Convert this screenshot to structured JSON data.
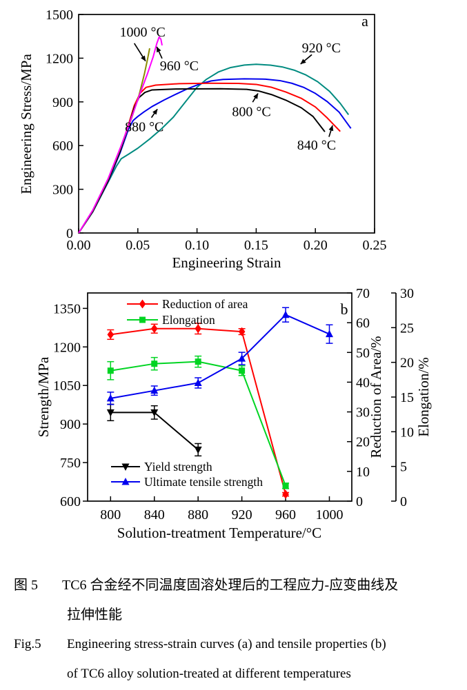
{
  "caption": {
    "zh_label": "图 5",
    "zh_line1": "TC6 合金经不同温度固溶处理后的工程应力-应变曲线及",
    "zh_line2": "拉伸性能",
    "en_label": "Fig.5",
    "en_line1": "Engineering stress-strain curves (a) and tensile properties (b)",
    "en_line2": "of TC6 alloy solution-treated at different temperatures"
  },
  "chart_data": [
    {
      "id": "a",
      "type": "line",
      "panel_label": "a",
      "xlabel": "Engineering Strain",
      "ylabel": "Engineering Stress/MPa",
      "xlim": [
        0,
        0.25
      ],
      "ylim": [
        0,
        1500
      ],
      "xticks": [
        0,
        0.05,
        0.1,
        0.15,
        0.2,
        0.25
      ],
      "xtick_labels": [
        "0.00",
        "0.05",
        "0.10",
        "0.15",
        "0.20",
        "0.25"
      ],
      "yticks": [
        0,
        300,
        600,
        900,
        1200,
        1500
      ],
      "ytick_labels": [
        "0",
        "300",
        "600",
        "900",
        "1200",
        "1500"
      ],
      "grid": false,
      "series": [
        {
          "name": "920 °C",
          "color": "#008b80",
          "points": [
            [
              0,
              0
            ],
            [
              0.012,
              145
            ],
            [
              0.025,
              350
            ],
            [
              0.032,
              460
            ],
            [
              0.036,
              510
            ],
            [
              0.042,
              540
            ],
            [
              0.05,
              582
            ],
            [
              0.06,
              645
            ],
            [
              0.07,
              715
            ],
            [
              0.08,
              795
            ],
            [
              0.09,
              898
            ],
            [
              0.1,
              1000
            ],
            [
              0.108,
              1055
            ],
            [
              0.118,
              1105
            ],
            [
              0.128,
              1135
            ],
            [
              0.14,
              1153
            ],
            [
              0.15,
              1158
            ],
            [
              0.162,
              1152
            ],
            [
              0.172,
              1140
            ],
            [
              0.182,
              1118
            ],
            [
              0.192,
              1085
            ],
            [
              0.202,
              1038
            ],
            [
              0.212,
              972
            ],
            [
              0.221,
              890
            ],
            [
              0.228,
              812
            ]
          ]
        },
        {
          "name": "880 °C",
          "color": "#0000ee",
          "points": [
            [
              0,
              0
            ],
            [
              0.012,
              148
            ],
            [
              0.025,
              355
            ],
            [
              0.035,
              550
            ],
            [
              0.042,
              710
            ],
            [
              0.046,
              772
            ],
            [
              0.05,
              800
            ],
            [
              0.055,
              830
            ],
            [
              0.062,
              868
            ],
            [
              0.072,
              912
            ],
            [
              0.082,
              952
            ],
            [
              0.092,
              990
            ],
            [
              0.102,
              1022
            ],
            [
              0.112,
              1044
            ],
            [
              0.122,
              1054
            ],
            [
              0.14,
              1058
            ],
            [
              0.158,
              1056
            ],
            [
              0.17,
              1046
            ],
            [
              0.18,
              1028
            ],
            [
              0.19,
              1000
            ],
            [
              0.2,
              958
            ],
            [
              0.21,
              902
            ],
            [
              0.22,
              830
            ],
            [
              0.23,
              718
            ]
          ]
        },
        {
          "name": "840 °C",
          "color": "#ff0000",
          "points": [
            [
              0,
              0
            ],
            [
              0.012,
              150
            ],
            [
              0.025,
              360
            ],
            [
              0.035,
              565
            ],
            [
              0.042,
              740
            ],
            [
              0.047,
              875
            ],
            [
              0.052,
              960
            ],
            [
              0.057,
              1000
            ],
            [
              0.065,
              1015
            ],
            [
              0.085,
              1025
            ],
            [
              0.11,
              1028
            ],
            [
              0.135,
              1027
            ],
            [
              0.15,
              1020
            ],
            [
              0.163,
              1000
            ],
            [
              0.175,
              968
            ],
            [
              0.188,
              925
            ],
            [
              0.2,
              865
            ],
            [
              0.21,
              790
            ],
            [
              0.221,
              697
            ]
          ]
        },
        {
          "name": "800 °C",
          "color": "#000000",
          "points": [
            [
              0,
              0
            ],
            [
              0.012,
              150
            ],
            [
              0.025,
              360
            ],
            [
              0.035,
              560
            ],
            [
              0.042,
              730
            ],
            [
              0.047,
              860
            ],
            [
              0.051,
              930
            ],
            [
              0.056,
              965
            ],
            [
              0.062,
              982
            ],
            [
              0.08,
              988
            ],
            [
              0.12,
              990
            ],
            [
              0.142,
              986
            ],
            [
              0.152,
              975
            ],
            [
              0.163,
              950
            ],
            [
              0.175,
              912
            ],
            [
              0.188,
              860
            ],
            [
              0.198,
              800
            ],
            [
              0.208,
              695
            ]
          ]
        },
        {
          "name": "1000 °C",
          "color": "#8b8b00",
          "points": [
            [
              0,
              0
            ],
            [
              0.012,
              156
            ],
            [
              0.025,
              372
            ],
            [
              0.035,
              575
            ],
            [
              0.045,
              795
            ],
            [
              0.051,
              945
            ],
            [
              0.0555,
              1090
            ],
            [
              0.058,
              1185
            ],
            [
              0.06,
              1268
            ]
          ]
        },
        {
          "name": "960 °C",
          "color": "#ff00ff",
          "points": [
            [
              0,
              0
            ],
            [
              0.012,
              158
            ],
            [
              0.025,
              375
            ],
            [
              0.035,
              580
            ],
            [
              0.045,
              800
            ],
            [
              0.052,
              960
            ],
            [
              0.058,
              1090
            ],
            [
              0.063,
              1210
            ],
            [
              0.066,
              1300
            ],
            [
              0.068,
              1345
            ],
            [
              0.0695,
              1330
            ],
            [
              0.0705,
              1288
            ]
          ]
        }
      ],
      "annotations": [
        {
          "text": "1000 °C",
          "x": 0.054,
          "y": 1382,
          "arrow_from": [
            0.047,
            1302
          ],
          "arrow_to": [
            0.0565,
            1180
          ]
        },
        {
          "text": "960 °C",
          "x": 0.085,
          "y": 1150,
          "arrow_from": [
            0.0705,
            1198
          ],
          "arrow_to": [
            0.066,
            1278
          ]
        },
        {
          "text": "920 °C",
          "x": 0.205,
          "y": 1272,
          "arrow_from": [
            0.197,
            1224
          ],
          "arrow_to": [
            0.1875,
            1160
          ]
        },
        {
          "text": "800 °C",
          "x": 0.146,
          "y": 835,
          "arrow_from": [
            0.147,
            898
          ],
          "arrow_to": [
            0.1515,
            958
          ]
        },
        {
          "text": "880 °C",
          "x": 0.0555,
          "y": 732,
          "arrow_from": [
            0.0615,
            792
          ],
          "arrow_to": [
            0.0665,
            850
          ]
        },
        {
          "text": "840 °C",
          "x": 0.201,
          "y": 605,
          "arrow_from": [
            0.2115,
            660
          ],
          "arrow_to": [
            0.2145,
            738
          ]
        }
      ]
    },
    {
      "id": "b",
      "type": "line",
      "panel_label": "b",
      "xlabel": "Solution-treatment Temperature/°C",
      "xlim": [
        779,
        1020.5
      ],
      "xticks": [
        800,
        840,
        880,
        920,
        960,
        1000
      ],
      "xtick_labels": [
        "800",
        "840",
        "880",
        "920",
        "960",
        "1000"
      ],
      "grid": false,
      "axes": {
        "left": {
          "label": "Strength/MPa",
          "lim": [
            600,
            1410
          ],
          "ticks": [
            600,
            750,
            900,
            1050,
            1200,
            1350
          ],
          "tick_labels": [
            "600",
            "750",
            "900",
            "1050",
            "1200",
            "1350"
          ]
        },
        "right1": {
          "label": "Reduction of Area/%",
          "lim": [
            0,
            70
          ],
          "ticks": [
            0,
            10,
            20,
            30,
            40,
            50,
            60,
            70
          ],
          "tick_labels": [
            "0",
            "10",
            "20",
            "30",
            "40",
            "50",
            "60",
            "70"
          ]
        },
        "right2": {
          "label": "Elongation/%",
          "lim": [
            0,
            30
          ],
          "ticks": [
            0,
            5,
            10,
            15,
            20,
            25,
            30
          ],
          "tick_labels": [
            "0",
            "5",
            "10",
            "15",
            "20",
            "25",
            "30"
          ]
        }
      },
      "series": [
        {
          "name": "Reduction of area",
          "axis": "right1",
          "color": "#ff0000",
          "marker": "diamond",
          "x": [
            800,
            840,
            880,
            920,
            960
          ],
          "y": [
            56,
            58,
            58,
            57,
            2.3
          ],
          "yerr": [
            1.6,
            1.5,
            1.8,
            1.0,
            0.6
          ]
        },
        {
          "name": "Elongation",
          "axis": "right2",
          "color": "#00d422",
          "marker": "square",
          "x": [
            800,
            840,
            880,
            920,
            960
          ],
          "y": [
            18.8,
            19.8,
            20.1,
            18.8,
            2.2
          ],
          "yerr": [
            1.3,
            0.9,
            0.8,
            0.7,
            0.4
          ]
        },
        {
          "name": "Yield strength",
          "axis": "left",
          "color": "#000000",
          "marker": "triangle-down",
          "x": [
            800,
            840,
            880
          ],
          "y": [
            945,
            945,
            800
          ],
          "yerr": [
            32,
            26,
            24
          ]
        },
        {
          "name": "Ultimate tensile strength",
          "axis": "left",
          "color": "#0000ee",
          "marker": "triangle-up",
          "x": [
            800,
            840,
            880,
            920,
            960,
            1000
          ],
          "y": [
            1000,
            1030,
            1060,
            1155,
            1325,
            1250
          ],
          "yerr": [
            24,
            18,
            20,
            24,
            28,
            36
          ]
        }
      ],
      "legend_top": [
        "Reduction of area",
        "Elongation"
      ],
      "legend_bottom": [
        "Yield strength",
        "Ultimate tensile strength"
      ]
    }
  ]
}
